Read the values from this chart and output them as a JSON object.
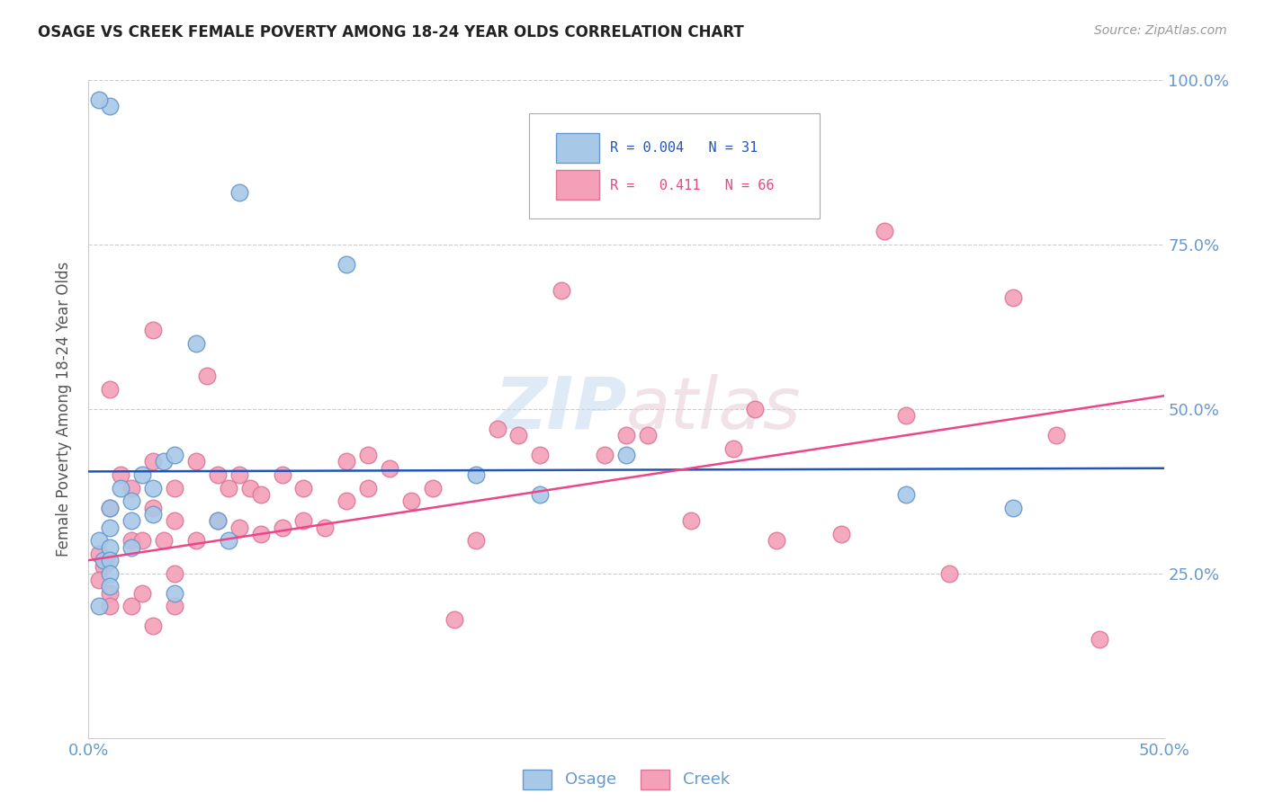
{
  "title": "OSAGE VS CREEK FEMALE POVERTY AMONG 18-24 YEAR OLDS CORRELATION CHART",
  "source": "Source: ZipAtlas.com",
  "ylabel": "Female Poverty Among 18-24 Year Olds",
  "xlim": [
    0.0,
    0.5
  ],
  "ylim": [
    0.0,
    1.0
  ],
  "osage_color": "#A8C8E8",
  "creek_color": "#F4A0B8",
  "osage_edge": "#6699CC",
  "creek_edge": "#DD7799",
  "trend_osage_color": "#2255BB",
  "trend_creek_color": "#EE4488",
  "osage_R": "0.004",
  "osage_N": "31",
  "creek_R": "0.411",
  "creek_N": "66",
  "legend_label_osage": "Osage",
  "legend_label_creek": "Creek",
  "watermark_zip": "ZIP",
  "watermark_atlas": "atlas",
  "background_color": "#ffffff",
  "grid_color": "#cccccc",
  "tick_color": "#6699CC",
  "osage_x": [
    0.005,
    0.007,
    0.01,
    0.01,
    0.01,
    0.01,
    0.01,
    0.01,
    0.015,
    0.02,
    0.02,
    0.02,
    0.025,
    0.03,
    0.03,
    0.035,
    0.04,
    0.04,
    0.05,
    0.06,
    0.065,
    0.07,
    0.01,
    0.005,
    0.005,
    0.12,
    0.18,
    0.21,
    0.25,
    0.38,
    0.43
  ],
  "osage_y": [
    0.3,
    0.27,
    0.35,
    0.32,
    0.29,
    0.27,
    0.25,
    0.23,
    0.38,
    0.36,
    0.33,
    0.29,
    0.4,
    0.38,
    0.34,
    0.42,
    0.43,
    0.22,
    0.6,
    0.33,
    0.3,
    0.83,
    0.96,
    0.97,
    0.2,
    0.72,
    0.4,
    0.37,
    0.43,
    0.37,
    0.35
  ],
  "creek_x": [
    0.005,
    0.007,
    0.008,
    0.01,
    0.01,
    0.01,
    0.015,
    0.02,
    0.02,
    0.025,
    0.03,
    0.03,
    0.03,
    0.035,
    0.04,
    0.04,
    0.04,
    0.05,
    0.05,
    0.055,
    0.06,
    0.06,
    0.065,
    0.07,
    0.07,
    0.075,
    0.08,
    0.08,
    0.09,
    0.09,
    0.1,
    0.1,
    0.11,
    0.12,
    0.12,
    0.13,
    0.13,
    0.14,
    0.15,
    0.16,
    0.17,
    0.18,
    0.19,
    0.2,
    0.21,
    0.22,
    0.24,
    0.25,
    0.26,
    0.28,
    0.3,
    0.31,
    0.32,
    0.35,
    0.37,
    0.38,
    0.4,
    0.43,
    0.45,
    0.47,
    0.005,
    0.01,
    0.02,
    0.025,
    0.03,
    0.04
  ],
  "creek_y": [
    0.28,
    0.26,
    0.27,
    0.53,
    0.35,
    0.22,
    0.4,
    0.38,
    0.3,
    0.3,
    0.62,
    0.42,
    0.35,
    0.3,
    0.38,
    0.33,
    0.25,
    0.42,
    0.3,
    0.55,
    0.4,
    0.33,
    0.38,
    0.4,
    0.32,
    0.38,
    0.37,
    0.31,
    0.4,
    0.32,
    0.38,
    0.33,
    0.32,
    0.42,
    0.36,
    0.43,
    0.38,
    0.41,
    0.36,
    0.38,
    0.18,
    0.3,
    0.47,
    0.46,
    0.43,
    0.68,
    0.43,
    0.46,
    0.46,
    0.33,
    0.44,
    0.5,
    0.3,
    0.31,
    0.77,
    0.49,
    0.25,
    0.67,
    0.46,
    0.15,
    0.24,
    0.2,
    0.2,
    0.22,
    0.17,
    0.2
  ]
}
